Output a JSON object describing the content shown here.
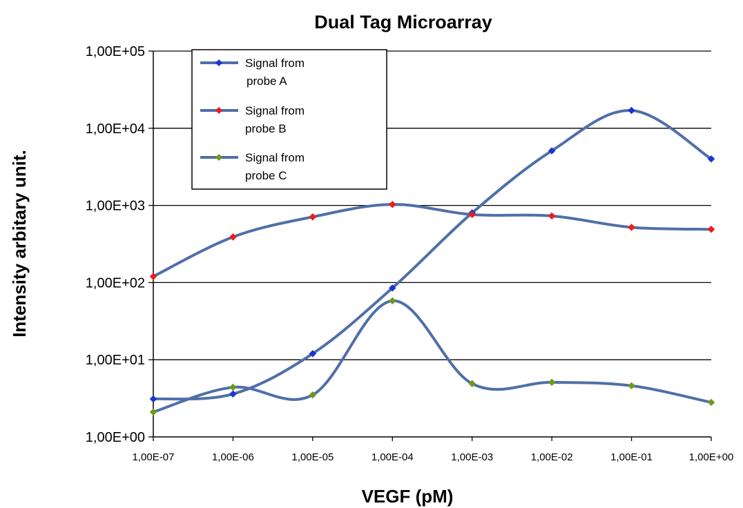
{
  "chart_data": {
    "type": "line",
    "title": "Dual Tag Microarray",
    "xlabel": "VEGF (pM)",
    "ylabel": "Intensity arbitary unit.",
    "y_scale": "log",
    "x_scale": "log",
    "ylim": [
      1,
      100000
    ],
    "grid": "horizontal",
    "legend_position": "top-left",
    "x": [
      1e-07,
      1e-06,
      1e-05,
      0.0001,
      0.001,
      0.01,
      0.1,
      1
    ],
    "x_tick_labels": [
      "1,00E-07",
      "1,00E-06",
      "1,00E-05",
      "1,00E-04",
      "1,00E-03",
      "1,00E-02",
      "1,00E-01",
      "1,00E+00"
    ],
    "y_tick_labels": [
      "1,00E+05",
      "1,00E+04",
      "1,00E+03",
      "1,00E+02",
      "1,00E+01",
      "1,00E+00"
    ],
    "y_tick_values": [
      100000,
      10000,
      1000,
      100,
      10,
      1
    ],
    "series": [
      {
        "name": "Signal from probe A",
        "legend_lines": [
          "Signal from",
          "probe A"
        ],
        "color": "#4f6fa8",
        "marker_color": "#1a35d6",
        "values": [
          3.1,
          3.6,
          12,
          85,
          800,
          5100,
          17000,
          4000
        ]
      },
      {
        "name": "Signal from probe B",
        "legend_lines": [
          "Signal from",
          "probe B"
        ],
        "color": "#4f6fa8",
        "marker_color": "#ee1c1c",
        "values": [
          120,
          390,
          710,
          1030,
          760,
          730,
          520,
          490
        ]
      },
      {
        "name": "Signal from probe C",
        "legend_lines": [
          "Signal from",
          "probe C"
        ],
        "color": "#4f6fa8",
        "marker_color": "#6e9a1c",
        "values": [
          2.1,
          4.4,
          3.5,
          58,
          4.9,
          5.1,
          4.6,
          2.8
        ]
      }
    ]
  }
}
